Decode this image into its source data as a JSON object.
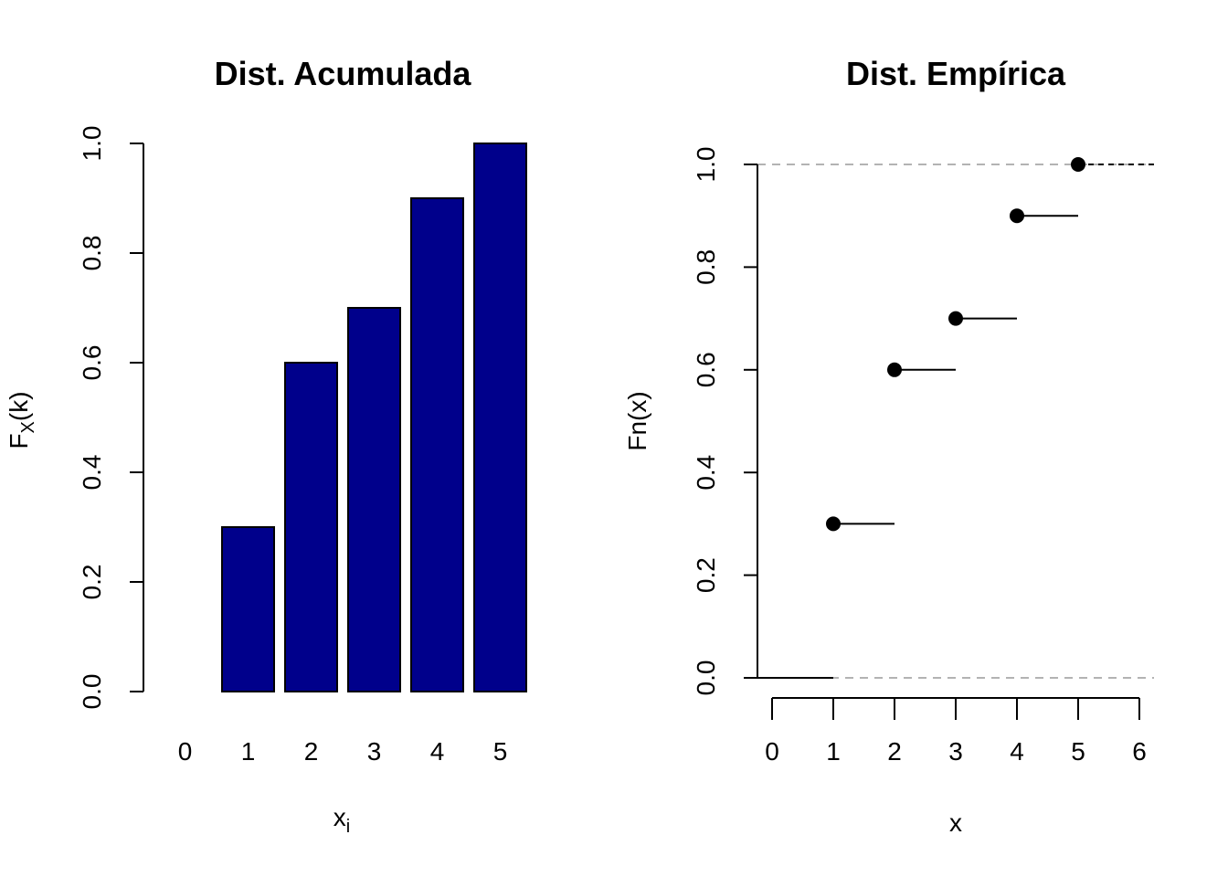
{
  "chart_data": [
    {
      "type": "bar",
      "title": "Dist. Acumulada",
      "xlabel": {
        "base": "x",
        "sub": "i"
      },
      "ylabel": {
        "base": "F",
        "sub": "X",
        "rest": "(k)"
      },
      "categories": [
        "0",
        "1",
        "2",
        "3",
        "4",
        "5"
      ],
      "values": [
        0.0,
        0.3,
        0.6,
        0.7,
        0.9,
        1.0
      ],
      "ylim": [
        0,
        1
      ],
      "yticks": [
        "0.0",
        "0.2",
        "0.4",
        "0.6",
        "0.8",
        "1.0"
      ],
      "bar_color": "#00008B",
      "grid": false
    },
    {
      "type": "step",
      "title": "Dist. Empírica",
      "xlabel": "x",
      "ylabel": "Fn(x)",
      "x": [
        1,
        2,
        3,
        4,
        5
      ],
      "y": [
        0.3,
        0.6,
        0.7,
        0.9,
        1.0
      ],
      "xlim": [
        0,
        6
      ],
      "ylim": [
        0,
        1
      ],
      "xticks": [
        "0",
        "1",
        "2",
        "3",
        "4",
        "5",
        "6"
      ],
      "yticks": [
        "0.0",
        "0.2",
        "0.4",
        "0.6",
        "0.8",
        "1.0"
      ],
      "reference_lines_y": [
        0,
        1
      ],
      "reference_line_color": "#b3b3b3",
      "point_color": "#000000",
      "grid": false
    }
  ]
}
